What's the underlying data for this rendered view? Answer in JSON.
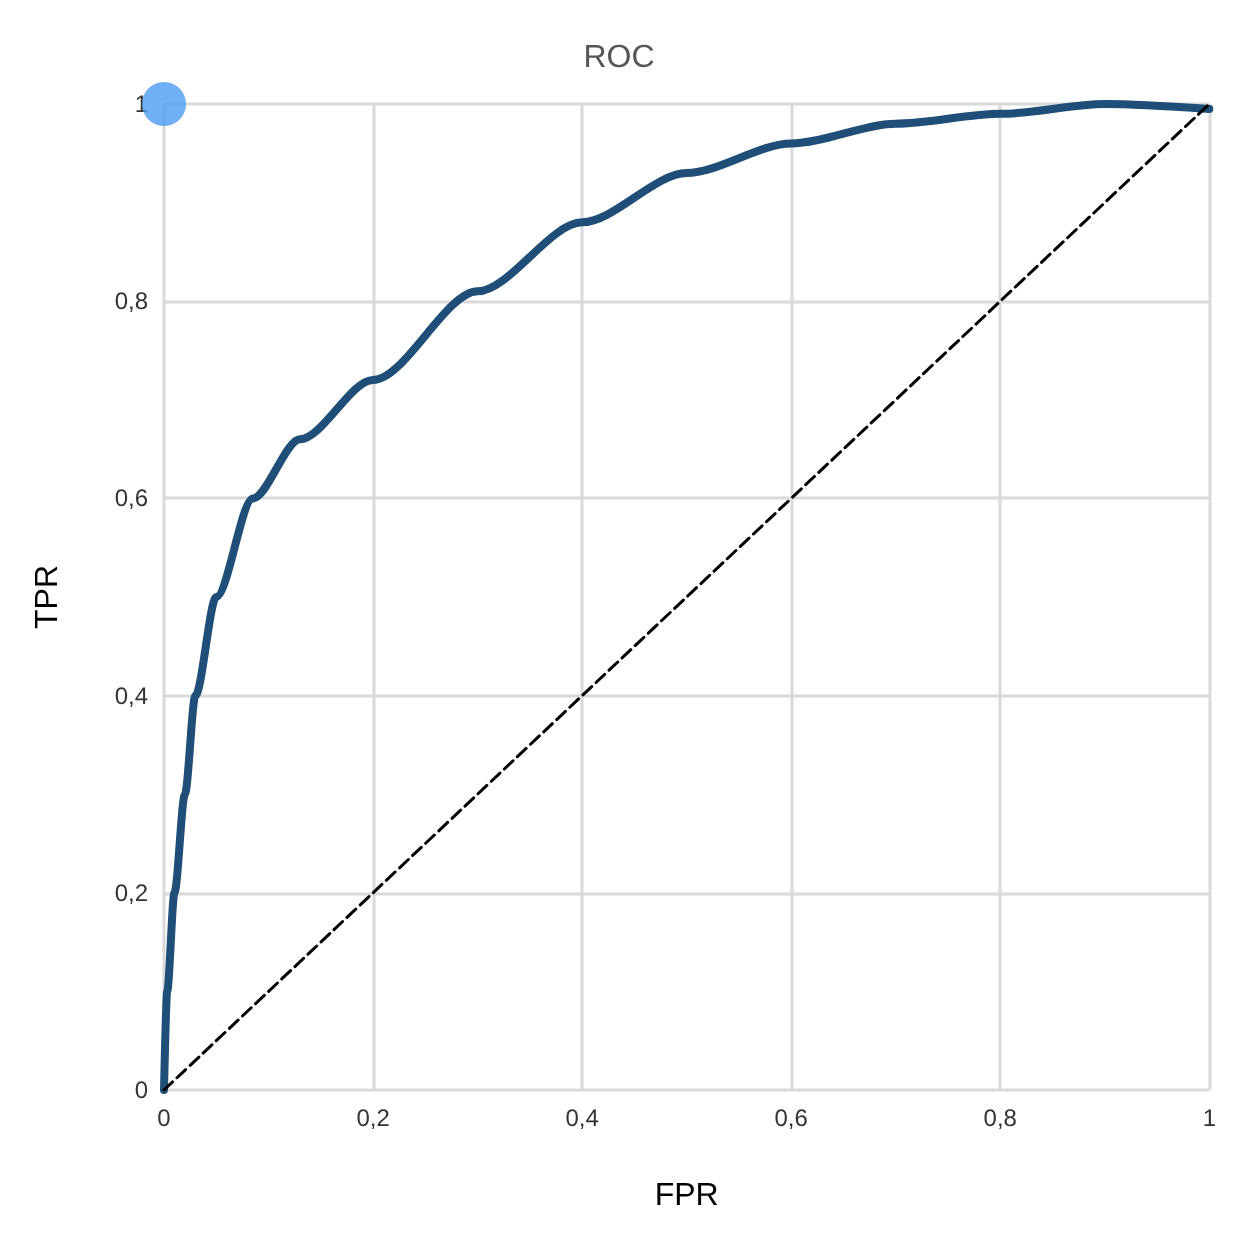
{
  "chart_data": {
    "type": "line",
    "title": "ROC",
    "xlabel": "FPR",
    "ylabel": "TPR",
    "xlim": [
      0,
      1
    ],
    "ylim": [
      0,
      1
    ],
    "xticks": [
      0,
      {
        "value": 0.2,
        "label": "0,2"
      },
      {
        "value": 0.4,
        "label": "0,4"
      },
      {
        "value": 0.6,
        "label": "0,6"
      },
      {
        "value": 0.8,
        "label": "0,8"
      },
      1
    ],
    "yticks": [
      0,
      {
        "value": 0.2,
        "label": "0,2"
      },
      {
        "value": 0.4,
        "label": "0,4"
      },
      {
        "value": 0.6,
        "label": "0,6"
      },
      {
        "value": 0.8,
        "label": "0,8"
      },
      1
    ],
    "grid": true,
    "series": [
      {
        "color": "#1f4e79",
        "marker": "none",
        "line_style": "solid",
        "x": [
          0,
          0.003,
          0.01,
          0.02,
          0.03,
          0.05,
          0.085,
          0.13,
          0.2,
          0.3,
          0.4,
          0.5,
          0.6,
          0.7,
          0.8,
          0.9,
          1
        ],
        "values": [
          0,
          0.1,
          0.2,
          0.3,
          0.4,
          0.5,
          0.6,
          0.66,
          0.72,
          0.81,
          0.88,
          0.93,
          0.96,
          0.98,
          0.99,
          1,
          0.995
        ]
      },
      {
        "type": "line",
        "color": "#000000",
        "marker": "none",
        "line_style": "dashed",
        "x": [
          0,
          1
        ],
        "values": [
          0,
          1
        ]
      },
      {
        "type": "scatter",
        "color": "#4a9cf0",
        "marker": "circle",
        "x": [
          0
        ],
        "values": [
          1
        ]
      }
    ]
  }
}
